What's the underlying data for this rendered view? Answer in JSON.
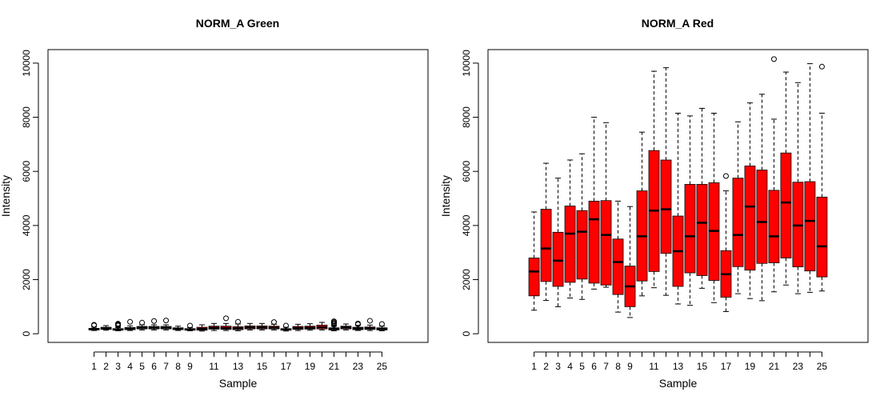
{
  "chart_data": [
    {
      "type": "boxplot",
      "title": "NORM_A Green",
      "xlabel": "Sample",
      "ylabel": "Intensity",
      "ylim": [
        0,
        10500
      ],
      "yticks": [
        0,
        2000,
        4000,
        6000,
        8000,
        10000
      ],
      "xtick_labels": [
        "1",
        "2",
        "3",
        "4",
        "5",
        "6",
        "7",
        "8",
        "9",
        "11",
        "13",
        "15",
        "17",
        "19",
        "21",
        "23",
        "25"
      ],
      "xtick_positions": [
        1,
        2,
        3,
        4,
        5,
        6,
        7,
        8,
        9,
        11,
        13,
        15,
        17,
        19,
        21,
        23,
        25
      ],
      "box_color": "#ff0000",
      "series": [
        {
          "x": 1,
          "min": 120,
          "q1": 140,
          "median": 170,
          "q3": 200,
          "max": 240,
          "outliers": [
            310,
            330
          ]
        },
        {
          "x": 2,
          "min": 130,
          "q1": 160,
          "median": 200,
          "q3": 240,
          "max": 300,
          "outliers": []
        },
        {
          "x": 3,
          "min": 110,
          "q1": 130,
          "median": 160,
          "q3": 190,
          "max": 230,
          "outliers": [
            300,
            330,
            350,
            370
          ]
        },
        {
          "x": 4,
          "min": 120,
          "q1": 150,
          "median": 190,
          "q3": 230,
          "max": 290,
          "outliers": [
            440
          ]
        },
        {
          "x": 5,
          "min": 140,
          "q1": 180,
          "median": 220,
          "q3": 270,
          "max": 330,
          "outliers": [
            410
          ]
        },
        {
          "x": 6,
          "min": 140,
          "q1": 180,
          "median": 220,
          "q3": 270,
          "max": 330,
          "outliers": [
            470
          ]
        },
        {
          "x": 7,
          "min": 140,
          "q1": 180,
          "median": 220,
          "q3": 270,
          "max": 330,
          "outliers": [
            490
          ]
        },
        {
          "x": 8,
          "min": 120,
          "q1": 150,
          "median": 180,
          "q3": 220,
          "max": 280,
          "outliers": []
        },
        {
          "x": 9,
          "min": 110,
          "q1": 130,
          "median": 160,
          "q3": 190,
          "max": 230,
          "outliers": [
            300
          ]
        },
        {
          "x": 10,
          "min": 100,
          "q1": 130,
          "median": 180,
          "q3": 240,
          "max": 330,
          "outliers": []
        },
        {
          "x": 11,
          "min": 120,
          "q1": 170,
          "median": 220,
          "q3": 280,
          "max": 380,
          "outliers": []
        },
        {
          "x": 12,
          "min": 120,
          "q1": 160,
          "median": 210,
          "q3": 280,
          "max": 380,
          "outliers": [
            570
          ]
        },
        {
          "x": 13,
          "min": 110,
          "q1": 150,
          "median": 200,
          "q3": 260,
          "max": 360,
          "outliers": [
            440
          ]
        },
        {
          "x": 14,
          "min": 140,
          "q1": 180,
          "median": 230,
          "q3": 290,
          "max": 380,
          "outliers": []
        },
        {
          "x": 15,
          "min": 140,
          "q1": 180,
          "median": 230,
          "q3": 290,
          "max": 380,
          "outliers": []
        },
        {
          "x": 16,
          "min": 140,
          "q1": 180,
          "median": 220,
          "q3": 280,
          "max": 350,
          "outliers": [
            430
          ]
        },
        {
          "x": 17,
          "min": 100,
          "q1": 130,
          "median": 160,
          "q3": 190,
          "max": 240,
          "outliers": [
            300
          ]
        },
        {
          "x": 18,
          "min": 120,
          "q1": 160,
          "median": 210,
          "q3": 270,
          "max": 350,
          "outliers": []
        },
        {
          "x": 19,
          "min": 130,
          "q1": 170,
          "median": 220,
          "q3": 280,
          "max": 370,
          "outliers": []
        },
        {
          "x": 20,
          "min": 140,
          "q1": 180,
          "median": 240,
          "q3": 320,
          "max": 420,
          "outliers": []
        },
        {
          "x": 21,
          "min": 110,
          "q1": 140,
          "median": 180,
          "q3": 220,
          "max": 280,
          "outliers": [
            330,
            370,
            400,
            440,
            460
          ]
        },
        {
          "x": 22,
          "min": 140,
          "q1": 180,
          "median": 230,
          "q3": 280,
          "max": 360,
          "outliers": []
        },
        {
          "x": 23,
          "min": 120,
          "q1": 150,
          "median": 190,
          "q3": 240,
          "max": 310,
          "outliers": [
            350,
            380
          ]
        },
        {
          "x": 24,
          "min": 120,
          "q1": 160,
          "median": 200,
          "q3": 250,
          "max": 320,
          "outliers": [
            480
          ]
        },
        {
          "x": 25,
          "min": 110,
          "q1": 140,
          "median": 180,
          "q3": 220,
          "max": 280,
          "outliers": [
            360
          ]
        }
      ]
    },
    {
      "type": "boxplot",
      "title": "NORM_A Red",
      "xlabel": "Sample",
      "ylabel": "Intensity",
      "ylim": [
        0,
        10500
      ],
      "yticks": [
        0,
        2000,
        4000,
        6000,
        8000,
        10000
      ],
      "xtick_labels": [
        "1",
        "2",
        "3",
        "4",
        "5",
        "6",
        "7",
        "8",
        "9",
        "11",
        "13",
        "15",
        "17",
        "19",
        "21",
        "23",
        "25"
      ],
      "xtick_positions": [
        1,
        2,
        3,
        4,
        5,
        6,
        7,
        8,
        9,
        11,
        13,
        15,
        17,
        19,
        21,
        23,
        25
      ],
      "box_color": "#ff0000",
      "series": [
        {
          "x": 1,
          "min": 870,
          "q1": 1400,
          "median": 2300,
          "q3": 2800,
          "max": 4500,
          "outliers": []
        },
        {
          "x": 2,
          "min": 1230,
          "q1": 1930,
          "median": 3150,
          "q3": 4600,
          "max": 6300,
          "outliers": []
        },
        {
          "x": 3,
          "min": 1000,
          "q1": 1750,
          "median": 2700,
          "q3": 3750,
          "max": 5750,
          "outliers": []
        },
        {
          "x": 4,
          "min": 1320,
          "q1": 1900,
          "median": 3700,
          "q3": 4720,
          "max": 6420,
          "outliers": []
        },
        {
          "x": 5,
          "min": 1270,
          "q1": 2020,
          "median": 3770,
          "q3": 4550,
          "max": 6650,
          "outliers": []
        },
        {
          "x": 6,
          "min": 1650,
          "q1": 1870,
          "median": 4230,
          "q3": 4900,
          "max": 8000,
          "outliers": []
        },
        {
          "x": 7,
          "min": 1720,
          "q1": 1800,
          "median": 3650,
          "q3": 4920,
          "max": 7800,
          "outliers": []
        },
        {
          "x": 8,
          "min": 800,
          "q1": 1450,
          "median": 2650,
          "q3": 3500,
          "max": 4900,
          "outliers": []
        },
        {
          "x": 9,
          "min": 600,
          "q1": 1000,
          "median": 1750,
          "q3": 2500,
          "max": 4700,
          "outliers": []
        },
        {
          "x": 10,
          "min": 1400,
          "q1": 1950,
          "median": 3600,
          "q3": 5280,
          "max": 7450,
          "outliers": []
        },
        {
          "x": 11,
          "min": 1700,
          "q1": 2300,
          "median": 4550,
          "q3": 6770,
          "max": 9700,
          "outliers": []
        },
        {
          "x": 12,
          "min": 1420,
          "q1": 2970,
          "median": 4600,
          "q3": 6420,
          "max": 9830,
          "outliers": []
        },
        {
          "x": 13,
          "min": 1100,
          "q1": 1750,
          "median": 3050,
          "q3": 4350,
          "max": 8150,
          "outliers": []
        },
        {
          "x": 14,
          "min": 1050,
          "q1": 2250,
          "median": 3600,
          "q3": 5520,
          "max": 8050,
          "outliers": []
        },
        {
          "x": 15,
          "min": 1680,
          "q1": 2150,
          "median": 4100,
          "q3": 5520,
          "max": 8330,
          "outliers": []
        },
        {
          "x": 16,
          "min": 1150,
          "q1": 1970,
          "median": 3800,
          "q3": 5580,
          "max": 8150,
          "outliers": []
        },
        {
          "x": 17,
          "min": 820,
          "q1": 1350,
          "median": 2200,
          "q3": 3070,
          "max": 5280,
          "outliers": [
            5830
          ]
        },
        {
          "x": 18,
          "min": 1480,
          "q1": 2480,
          "median": 3650,
          "q3": 5750,
          "max": 7830,
          "outliers": []
        },
        {
          "x": 19,
          "min": 1300,
          "q1": 2350,
          "median": 4700,
          "q3": 6200,
          "max": 8530,
          "outliers": []
        },
        {
          "x": 20,
          "min": 1220,
          "q1": 2600,
          "median": 4130,
          "q3": 6050,
          "max": 8850,
          "outliers": []
        },
        {
          "x": 21,
          "min": 1550,
          "q1": 2620,
          "median": 3600,
          "q3": 5300,
          "max": 7930,
          "outliers": [
            10150
          ]
        },
        {
          "x": 22,
          "min": 1800,
          "q1": 2800,
          "median": 4850,
          "q3": 6680,
          "max": 9670,
          "outliers": []
        },
        {
          "x": 23,
          "min": 1480,
          "q1": 2470,
          "median": 4000,
          "q3": 5600,
          "max": 9280,
          "outliers": []
        },
        {
          "x": 24,
          "min": 1530,
          "q1": 2320,
          "median": 4170,
          "q3": 5620,
          "max": 9980,
          "outliers": []
        },
        {
          "x": 25,
          "min": 1580,
          "q1": 2100,
          "median": 3230,
          "q3": 5050,
          "max": 8150,
          "outliers": [
            9870
          ]
        }
      ]
    }
  ]
}
